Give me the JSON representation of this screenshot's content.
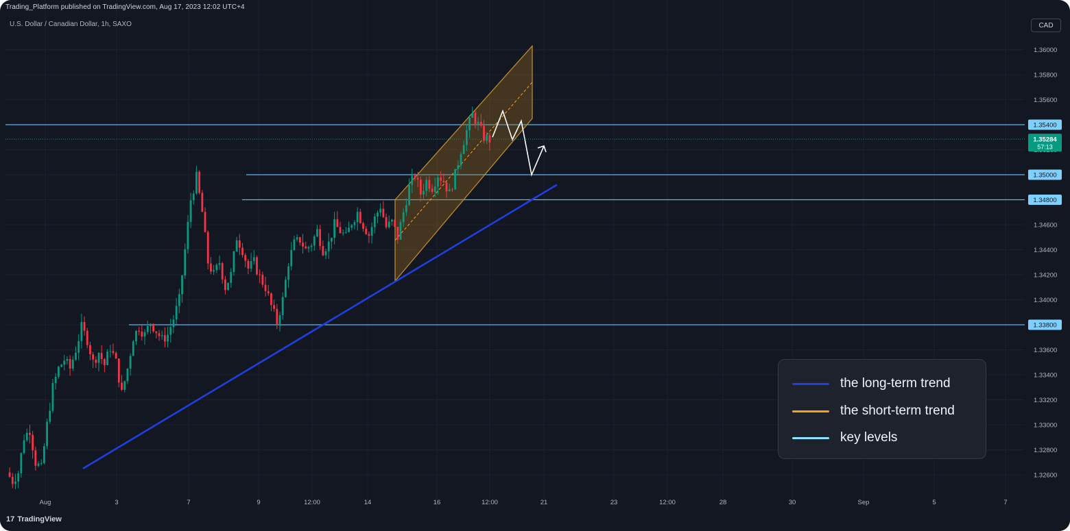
{
  "header": {
    "publish_line": "Trading_Platform published on TradingView.com, Aug 17, 2023 12:02 UTC+4",
    "symbol_line": "U.S. Dollar / Canadian Dollar, 1h, SAXO"
  },
  "currency_button": "CAD",
  "brand": {
    "logo_glyph": "17",
    "name": "TradingView"
  },
  "legend": {
    "items": [
      {
        "label": "the long-term trend",
        "color": "#1f3fe0"
      },
      {
        "label": "the short-term trend",
        "color": "#f7a21b"
      },
      {
        "label": "key levels",
        "color": "#8fe3ff"
      }
    ]
  },
  "colors": {
    "background": "#131722",
    "grid": "#1e222d",
    "up_candle": "#089981",
    "down_candle": "#f23645",
    "key_level": "#5ab6f0",
    "long_trend": "#1f3fe0",
    "channel_border": "#b88a30",
    "current_price_badge": "#089981"
  },
  "chart_data": {
    "type": "candlestick",
    "instrument": "U.S. Dollar / Canadian Dollar",
    "timeframe": "1h",
    "source": "SAXO",
    "y_axis": {
      "ticks": [
        "1.36000",
        "1.35800",
        "1.35600",
        "1.35400",
        "1.35200",
        "1.35000",
        "1.34800",
        "1.34600",
        "1.34400",
        "1.34200",
        "1.34000",
        "1.33800",
        "1.33600",
        "1.33400",
        "1.33200",
        "1.33000",
        "1.32800",
        "1.32600"
      ],
      "range": [
        1.325,
        1.362
      ]
    },
    "x_axis": {
      "ticks": [
        "Aug",
        "3",
        "7",
        "9",
        "12:00",
        "14",
        "16",
        "12:00",
        "21",
        "23",
        "12:00",
        "28",
        "30",
        "Sep",
        "5",
        "7"
      ]
    },
    "key_levels": [
      {
        "price": 1.354,
        "label": "1.35400"
      },
      {
        "price": 1.35,
        "label": "1.35000"
      },
      {
        "price": 1.348,
        "label": "1.34800"
      },
      {
        "price": 1.338,
        "label": "1.33800"
      }
    ],
    "current_price": {
      "label": "1.35284",
      "value": 1.35284,
      "countdown": "57:13"
    },
    "price_path": [
      [
        0,
        1.3262
      ],
      [
        2,
        1.3255
      ],
      [
        4,
        1.3262
      ],
      [
        6,
        1.329
      ],
      [
        8,
        1.3296
      ],
      [
        10,
        1.327
      ],
      [
        12,
        1.3265
      ],
      [
        14,
        1.33
      ],
      [
        16,
        1.333
      ],
      [
        18,
        1.3345
      ],
      [
        20,
        1.3352
      ],
      [
        22,
        1.3345
      ],
      [
        24,
        1.336
      ],
      [
        26,
        1.3378
      ],
      [
        28,
        1.3368
      ],
      [
        30,
        1.335
      ],
      [
        32,
        1.3358
      ],
      [
        34,
        1.3348
      ],
      [
        36,
        1.3362
      ],
      [
        38,
        1.335
      ],
      [
        40,
        1.3325
      ],
      [
        42,
        1.3345
      ],
      [
        44,
        1.337
      ],
      [
        46,
        1.3378
      ],
      [
        48,
        1.3372
      ],
      [
        50,
        1.3382
      ],
      [
        52,
        1.3375
      ],
      [
        54,
        1.3368
      ],
      [
        56,
        1.3372
      ],
      [
        58,
        1.3385
      ],
      [
        60,
        1.34
      ],
      [
        62,
        1.344
      ],
      [
        64,
        1.348
      ],
      [
        66,
        1.3498
      ],
      [
        68,
        1.347
      ],
      [
        70,
        1.343
      ],
      [
        72,
        1.342
      ],
      [
        74,
        1.343
      ],
      [
        76,
        1.341
      ],
      [
        78,
        1.342
      ],
      [
        80,
        1.345
      ],
      [
        82,
        1.344
      ],
      [
        84,
        1.3425
      ],
      [
        86,
        1.343
      ],
      [
        88,
        1.3418
      ],
      [
        90,
        1.341
      ],
      [
        92,
        1.3395
      ],
      [
        94,
        1.3382
      ],
      [
        96,
        1.34
      ],
      [
        98,
        1.343
      ],
      [
        100,
        1.3445
      ],
      [
        102,
        1.3448
      ],
      [
        104,
        1.344
      ],
      [
        106,
        1.3445
      ],
      [
        108,
        1.3455
      ],
      [
        110,
        1.344
      ],
      [
        112,
        1.3445
      ],
      [
        114,
        1.346
      ],
      [
        116,
        1.3455
      ],
      [
        118,
        1.345
      ],
      [
        120,
        1.3462
      ],
      [
        122,
        1.347
      ],
      [
        124,
        1.346
      ],
      [
        126,
        1.3452
      ],
      [
        128,
        1.3465
      ],
      [
        130,
        1.3475
      ],
      [
        132,
        1.3458
      ],
      [
        134,
        1.3462
      ],
      [
        136,
        1.345
      ],
      [
        138,
        1.347
      ],
      [
        140,
        1.349
      ],
      [
        142,
        1.35
      ],
      [
        144,
        1.3485
      ],
      [
        146,
        1.3495
      ],
      [
        148,
        1.349
      ],
      [
        150,
        1.35
      ],
      [
        152,
        1.3495
      ],
      [
        154,
        1.3485
      ],
      [
        156,
        1.35
      ],
      [
        158,
        1.352
      ],
      [
        160,
        1.3535
      ],
      [
        162,
        1.3548
      ],
      [
        164,
        1.354
      ],
      [
        166,
        1.353
      ],
      [
        168,
        1.3528
      ]
    ],
    "long_term_trend": {
      "from": [
        1.3265,
        "start"
      ],
      "to": [
        1.3492,
        "end"
      ]
    },
    "short_term_channel": {
      "upper": [
        1.348,
        1.3603
      ],
      "lower": [
        1.3415,
        1.3545
      ]
    },
    "projection": [
      1.353,
      1.3551,
      1.3528,
      1.3543,
      1.35,
      1.3523
    ]
  }
}
